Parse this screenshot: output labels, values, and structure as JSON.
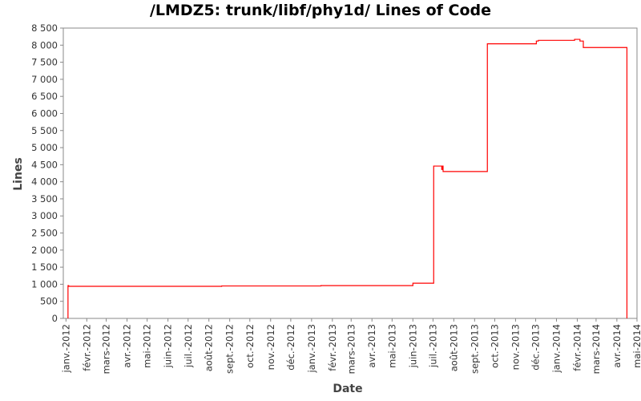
{
  "chart_data": {
    "type": "line",
    "title": "/LMDZ5: trunk/libf/phy1d/ Lines of Code",
    "xlabel": "Date",
    "ylabel": "Lines",
    "ylim": [
      0,
      8500
    ],
    "xlim": [
      "2011-12-28",
      "2014-05-01"
    ],
    "grid": false,
    "legend": "none",
    "y_ticks": [
      0,
      500,
      1000,
      1500,
      2000,
      2500,
      3000,
      3500,
      4000,
      4500,
      5000,
      5500,
      6000,
      6500,
      7000,
      7500,
      8000,
      8500
    ],
    "y_tick_labels": [
      "0",
      "500",
      "1 000",
      "1 500",
      "2 000",
      "2 500",
      "3 000",
      "3 500",
      "4 000",
      "4 500",
      "5 000",
      "5 500",
      "6 000",
      "6 500",
      "7 000",
      "7 500",
      "8 000",
      "8 500"
    ],
    "x_ticks": [
      {
        "date": "2012-01-01",
        "label": "janv.-2012"
      },
      {
        "date": "2012-02-01",
        "label": "févr.-2012"
      },
      {
        "date": "2012-03-01",
        "label": "mars-2012"
      },
      {
        "date": "2012-04-01",
        "label": "avr.-2012"
      },
      {
        "date": "2012-05-01",
        "label": "mai-2012"
      },
      {
        "date": "2012-06-01",
        "label": "juin-2012"
      },
      {
        "date": "2012-07-01",
        "label": "juil.-2012"
      },
      {
        "date": "2012-08-01",
        "label": "août-2012"
      },
      {
        "date": "2012-09-01",
        "label": "sept.-2012"
      },
      {
        "date": "2012-10-01",
        "label": "oct.-2012"
      },
      {
        "date": "2012-11-01",
        "label": "nov.-2012"
      },
      {
        "date": "2012-12-01",
        "label": "déc.-2012"
      },
      {
        "date": "2013-01-01",
        "label": "janv.-2013"
      },
      {
        "date": "2013-02-01",
        "label": "févr.-2013"
      },
      {
        "date": "2013-03-01",
        "label": "mars-2013"
      },
      {
        "date": "2013-04-01",
        "label": "avr.-2013"
      },
      {
        "date": "2013-05-01",
        "label": "mai-2013"
      },
      {
        "date": "2013-06-01",
        "label": "juin-2013"
      },
      {
        "date": "2013-07-01",
        "label": "juil.-2013"
      },
      {
        "date": "2013-08-01",
        "label": "août-2013"
      },
      {
        "date": "2013-09-01",
        "label": "sept.-2013"
      },
      {
        "date": "2013-10-01",
        "label": "oct.-2013"
      },
      {
        "date": "2013-11-01",
        "label": "nov.-2013"
      },
      {
        "date": "2013-12-01",
        "label": "déc.-2013"
      },
      {
        "date": "2014-01-01",
        "label": "janv.-2014"
      },
      {
        "date": "2014-02-01",
        "label": "févr.-2014"
      },
      {
        "date": "2014-03-01",
        "label": "mars-2014"
      },
      {
        "date": "2014-04-01",
        "label": "avr.-2014"
      },
      {
        "date": "2014-05-01",
        "label": "mai-2014"
      }
    ],
    "series": [
      {
        "color": "#ff0000",
        "step": true,
        "points": [
          {
            "date": "2012-01-04",
            "value": 0
          },
          {
            "date": "2012-01-04",
            "value": 960
          },
          {
            "date": "2012-01-05",
            "value": 940
          },
          {
            "date": "2012-08-20",
            "value": 950
          },
          {
            "date": "2013-01-15",
            "value": 960
          },
          {
            "date": "2013-06-01",
            "value": 1030
          },
          {
            "date": "2013-07-02",
            "value": 4460
          },
          {
            "date": "2013-07-14",
            "value": 4360
          },
          {
            "date": "2013-07-15",
            "value": 4460
          },
          {
            "date": "2013-07-16",
            "value": 4300
          },
          {
            "date": "2013-09-20",
            "value": 8040
          },
          {
            "date": "2013-12-02",
            "value": 8120
          },
          {
            "date": "2013-12-05",
            "value": 8140
          },
          {
            "date": "2014-01-28",
            "value": 8170
          },
          {
            "date": "2014-02-05",
            "value": 8120
          },
          {
            "date": "2014-02-10",
            "value": 7930
          },
          {
            "date": "2014-04-16",
            "value": 0
          }
        ]
      }
    ]
  }
}
